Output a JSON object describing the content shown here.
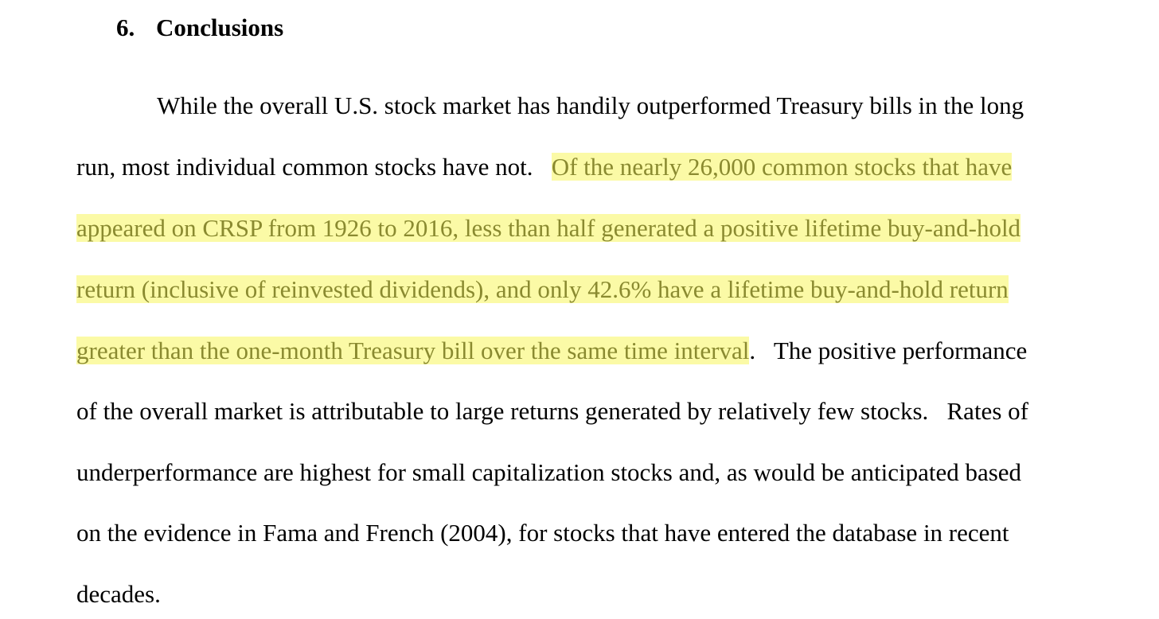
{
  "section": {
    "number": "6.",
    "title": "Conclusions"
  },
  "colors": {
    "highlight_background": "#fbfaa6",
    "highlight_text": "#8a8a30"
  },
  "paragraph": {
    "line1": "While the overall U.S. stock market has handily outperformed Treasury bills in the long",
    "line2_plain": "run, most individual common stocks have not.   ",
    "line2_highlight": "Of the nearly 26,000 common stocks that have",
    "line3_highlight": "appeared on CRSP from 1926 to 2016, less than half generated a positive lifetime buy-and-hold",
    "line4_highlight": "return (inclusive of reinvested dividends), and only 42.6% have a lifetime buy-and-hold return",
    "line5_highlight": "greater than the one-month Treasury bill over the same time interval",
    "line5_plain": ".   The positive performance",
    "line6": "of the overall market is attributable to large returns generated by relatively few stocks.   Rates of",
    "line7": "underperformance are highest for small capitalization stocks and, as would be anticipated based",
    "line8": "on the evidence in Fama and French (2004), for stocks that have entered the database in recent",
    "line9": "decades."
  }
}
